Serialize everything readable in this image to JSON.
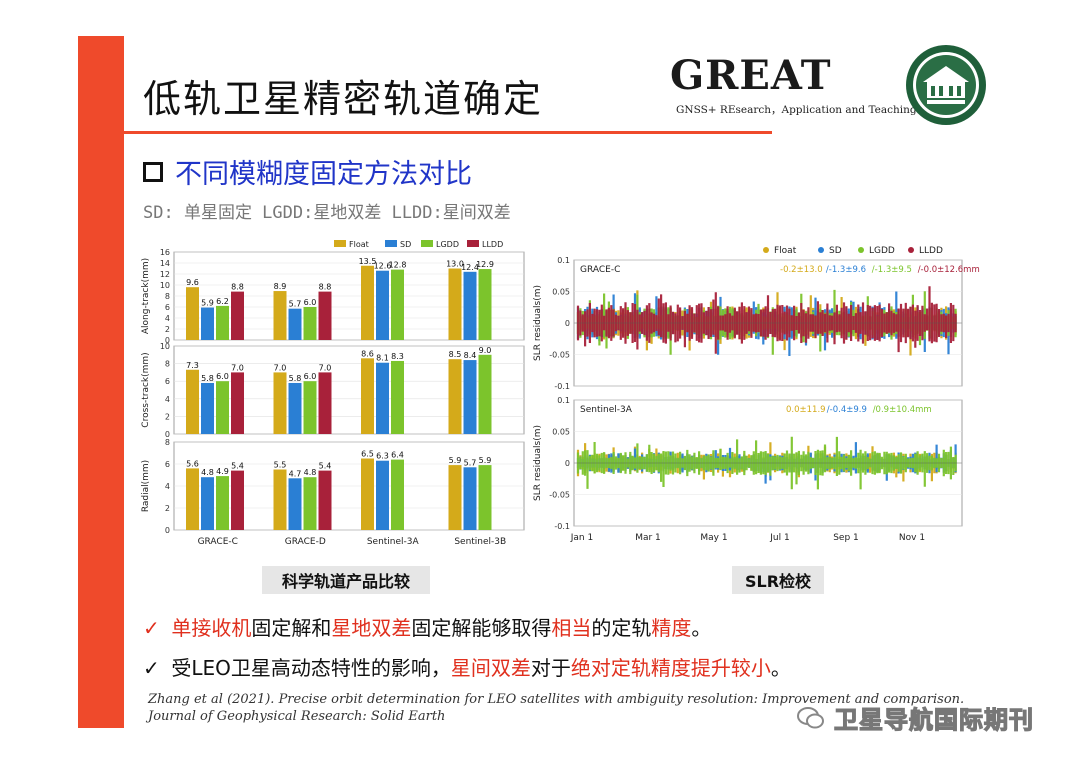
{
  "slide": {
    "title": "低轨卫星精密轨道确定",
    "logo_text": "GREAT",
    "logo_sub": "GNSS+ REsearch，Application and Teaching",
    "heading": "不同模糊度固定方法对比",
    "subtext": "SD: 单星固定  LGDD:星地双差  LLDD:星间双差",
    "caption_left": "科学轨道产品比较",
    "caption_right": "SLR检校",
    "bullet1": {
      "check": "✓",
      "p1": "单接收机",
      "p2": "固定解和",
      "p3": "星地双差",
      "p4": "固定解能够取得",
      "p5": "相当",
      "p6": "的定轨",
      "p7": "精度",
      "p8": "。"
    },
    "bullet2": {
      "check": "✓",
      "p1": "受LEO卫星高动态特性的影响，",
      "p2": "星间双差",
      "p3": "对于",
      "p4": "绝对定轨精度提升较小",
      "p5": "。"
    },
    "reference": "Zhang et al (2021). Precise orbit determination for LEO satellites with ambiguity resolution: Improvement and comparison. Journal of Geophysical Research: Solid Earth",
    "watermark": "卫星导航国际期刊"
  },
  "colors": {
    "accent_red": "#ef4a2b",
    "heading_blue": "#2035c8",
    "float": "#d4aa1a",
    "sd": "#2a7fd4",
    "lgdd": "#7cc42c",
    "lldd": "#a8213a"
  },
  "chart_data": [
    {
      "type": "bar",
      "title": "",
      "categories": [
        "GRACE-C",
        "GRACE-D",
        "Sentinel-3A",
        "Sentinel-3B"
      ],
      "legend": [
        "Float",
        "SD",
        "LGDD",
        "LLDD"
      ],
      "legend_position": "top-right",
      "panels": [
        {
          "ylabel": "Along-track(mm)",
          "ylim": [
            0,
            16
          ],
          "yticks": [
            "0",
            "2",
            "4",
            "6",
            "8",
            "10",
            "12",
            "14",
            "16"
          ],
          "series": [
            {
              "name": "Float",
              "values": [
                9.6,
                8.9,
                13.5,
                13.0
              ]
            },
            {
              "name": "SD",
              "values": [
                5.9,
                5.7,
                12.6,
                12.4
              ]
            },
            {
              "name": "LGDD",
              "values": [
                6.2,
                6.0,
                12.8,
                12.9
              ]
            },
            {
              "name": "LLDD",
              "values": [
                8.8,
                8.8,
                null,
                null
              ]
            }
          ],
          "labels": [
            [
              "9.6",
              "5.9",
              "6.2",
              "8.8"
            ],
            [
              "8.9",
              "5.7",
              "6.0",
              "8.8"
            ],
            [
              "13.5",
              "12.6",
              "12.8",
              ""
            ],
            [
              "13.0",
              "12.4",
              "12.9",
              ""
            ]
          ]
        },
        {
          "ylabel": "Cross-track(mm)",
          "ylim": [
            0,
            10
          ],
          "yticks": [
            "0",
            "2",
            "4",
            "6",
            "8",
            "10"
          ],
          "series": [
            {
              "name": "Float",
              "values": [
                7.3,
                7.0,
                8.6,
                8.5
              ]
            },
            {
              "name": "SD",
              "values": [
                5.8,
                5.8,
                8.1,
                8.4
              ]
            },
            {
              "name": "LGDD",
              "values": [
                6.0,
                6.0,
                8.3,
                9.0
              ]
            },
            {
              "name": "LLDD",
              "values": [
                7.0,
                7.0,
                null,
                null
              ]
            }
          ],
          "labels": [
            [
              "7.3",
              "5.8",
              "6.0",
              "7.0"
            ],
            [
              "7.0",
              "5.8",
              "6.0",
              "7.0"
            ],
            [
              "8.6",
              "8.1",
              "8.3",
              ""
            ],
            [
              "8.5",
              "8.4",
              "9.0",
              ""
            ]
          ]
        },
        {
          "ylabel": "Radial(mm)",
          "ylim": [
            0,
            8
          ],
          "yticks": [
            "0",
            "2",
            "4",
            "6",
            "8"
          ],
          "series": [
            {
              "name": "Float",
              "values": [
                5.6,
                5.5,
                6.5,
                5.9
              ]
            },
            {
              "name": "SD",
              "values": [
                4.8,
                4.7,
                6.3,
                5.7
              ]
            },
            {
              "name": "LGDD",
              "values": [
                4.9,
                4.8,
                6.4,
                5.9
              ]
            },
            {
              "name": "LLDD",
              "values": [
                5.4,
                5.4,
                null,
                null
              ]
            }
          ],
          "labels": [
            [
              "5.6",
              "4.8",
              "4.9",
              "5.4"
            ],
            [
              "5.5",
              "4.7",
              "4.8",
              "5.4"
            ],
            [
              "6.5",
              "6.3",
              "6.4",
              ""
            ],
            [
              "5.9",
              "5.7",
              "5.9",
              ""
            ]
          ]
        }
      ]
    },
    {
      "type": "scatter",
      "title": "",
      "legend": [
        "Float",
        "SD",
        "LGDD",
        "LLDD"
      ],
      "legend_position": "top-right",
      "xticks": [
        "Jan 1",
        "Mar 1",
        "May 1",
        "Jul 1",
        "Sep 1",
        "Nov 1"
      ],
      "panels": [
        {
          "name": "GRACE-C",
          "ylabel": "SLR residuals(m)",
          "ylim": [
            -0.1,
            0.1
          ],
          "yticks": [
            "0.1",
            "0.05",
            "0",
            "-0.05",
            "-0.1"
          ],
          "stats": [
            {
              "text": "-0.2±13.0",
              "color": "#d4aa1a"
            },
            {
              "text": "/-1.3±9.6",
              "color": "#2a7fd4"
            },
            {
              "text": "/-1.3±9.5",
              "color": "#7cc42c"
            },
            {
              "text": "/-0.0±12.6mm",
              "color": "#a8213a"
            }
          ]
        },
        {
          "name": "Sentinel-3A",
          "ylabel": "SLR residuals(m)",
          "ylim": [
            -0.1,
            0.1
          ],
          "yticks": [
            "0.1",
            "0.05",
            "0",
            "-0.05",
            "-0.1"
          ],
          "stats": [
            {
              "text": "0.0±11.9",
              "color": "#d4aa1a"
            },
            {
              "text": "/-0.4±9.9",
              "color": "#2a7fd4"
            },
            {
              "text": "/0.9±10.4mm",
              "color": "#7cc42c"
            }
          ]
        }
      ]
    }
  ]
}
